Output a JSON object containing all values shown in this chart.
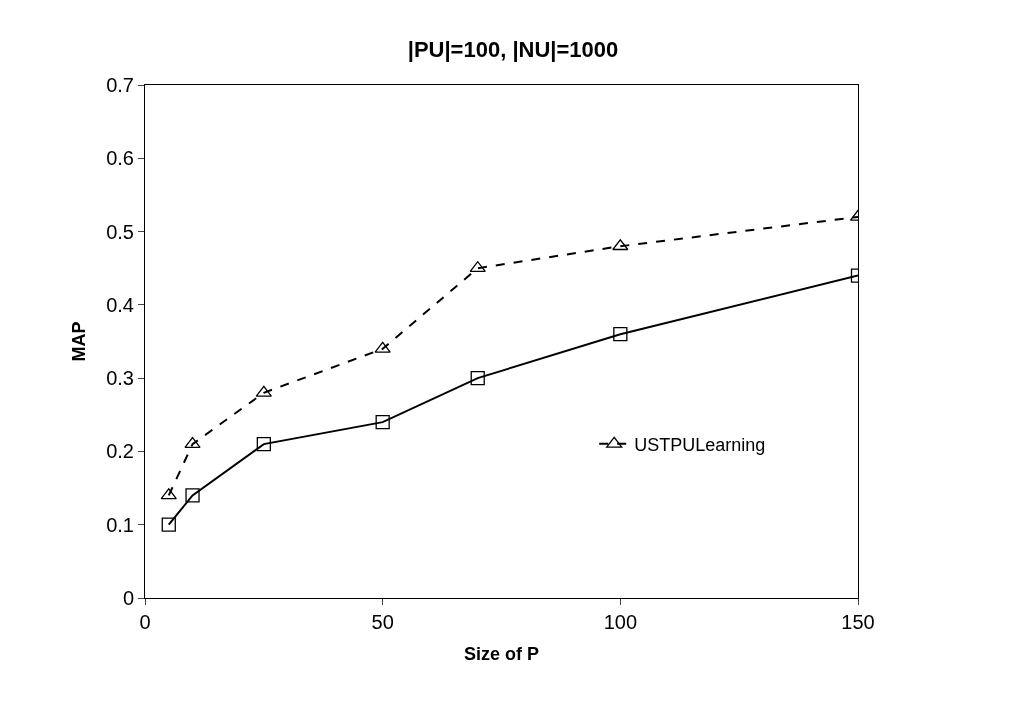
{
  "chart_data": {
    "type": "line",
    "title": "|PU|=100, |NU|=1000",
    "xlabel": "Size of P",
    "ylabel": "MAP",
    "x": [
      5,
      10,
      25,
      50,
      70,
      100,
      150
    ],
    "series": [
      {
        "name": "USTPULearning",
        "color": "#000000",
        "marker": "triangle",
        "line_style": "dashed",
        "values": [
          0.14,
          0.21,
          0.28,
          0.34,
          0.45,
          0.48,
          0.52
        ]
      },
      {
        "color": "#000000",
        "marker": "square",
        "line_style": "solid",
        "values": [
          0.1,
          0.14,
          0.21,
          0.24,
          0.3,
          0.36,
          0.44
        ]
      }
    ],
    "xlim": [
      0,
      150
    ],
    "xticks": [
      0,
      50,
      100,
      150
    ],
    "ylim": [
      0,
      0.7
    ],
    "yticks": [
      0,
      0.1,
      0.2,
      0.3,
      0.4,
      0.5,
      0.6,
      0.7
    ],
    "grid": false,
    "legend": "bottom right"
  }
}
